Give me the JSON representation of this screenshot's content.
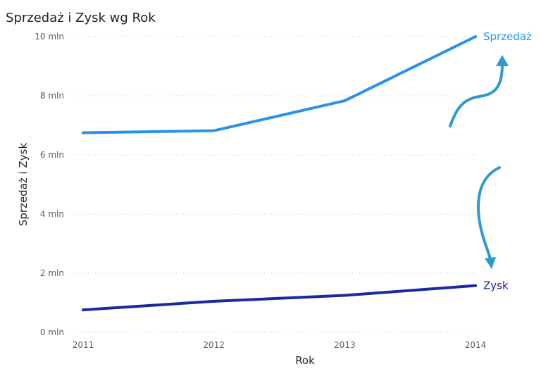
{
  "chart_data": {
    "type": "line",
    "title": "Sprzedaż i Zysk wg Rok",
    "xlabel": "Rok",
    "ylabel": "Sprzedaż i Zysk",
    "x": [
      "2011",
      "2012",
      "2013",
      "2014"
    ],
    "ylim": [
      0,
      10000000
    ],
    "yticks": [
      {
        "value": 0,
        "label": "0 mln"
      },
      {
        "value": 2000000,
        "label": "2 mln"
      },
      {
        "value": 4000000,
        "label": "4 mln"
      },
      {
        "value": 6000000,
        "label": "6 mln"
      },
      {
        "value": 8000000,
        "label": "8 mln"
      },
      {
        "value": 10000000,
        "label": "10 mln"
      }
    ],
    "grid": true,
    "legend": "none",
    "series": [
      {
        "name": "Sprzedaż",
        "values": [
          6750000,
          6820000,
          7830000,
          10000000
        ],
        "color": "#2a92e8"
      },
      {
        "name": "Zysk",
        "values": [
          760000,
          1050000,
          1250000,
          1580000
        ],
        "color": "#1a2a9c"
      }
    ],
    "annotation_arrows": [
      {
        "direction": "up",
        "color": "#2e9ad0"
      },
      {
        "direction": "down",
        "color": "#2e9ad0"
      }
    ]
  }
}
